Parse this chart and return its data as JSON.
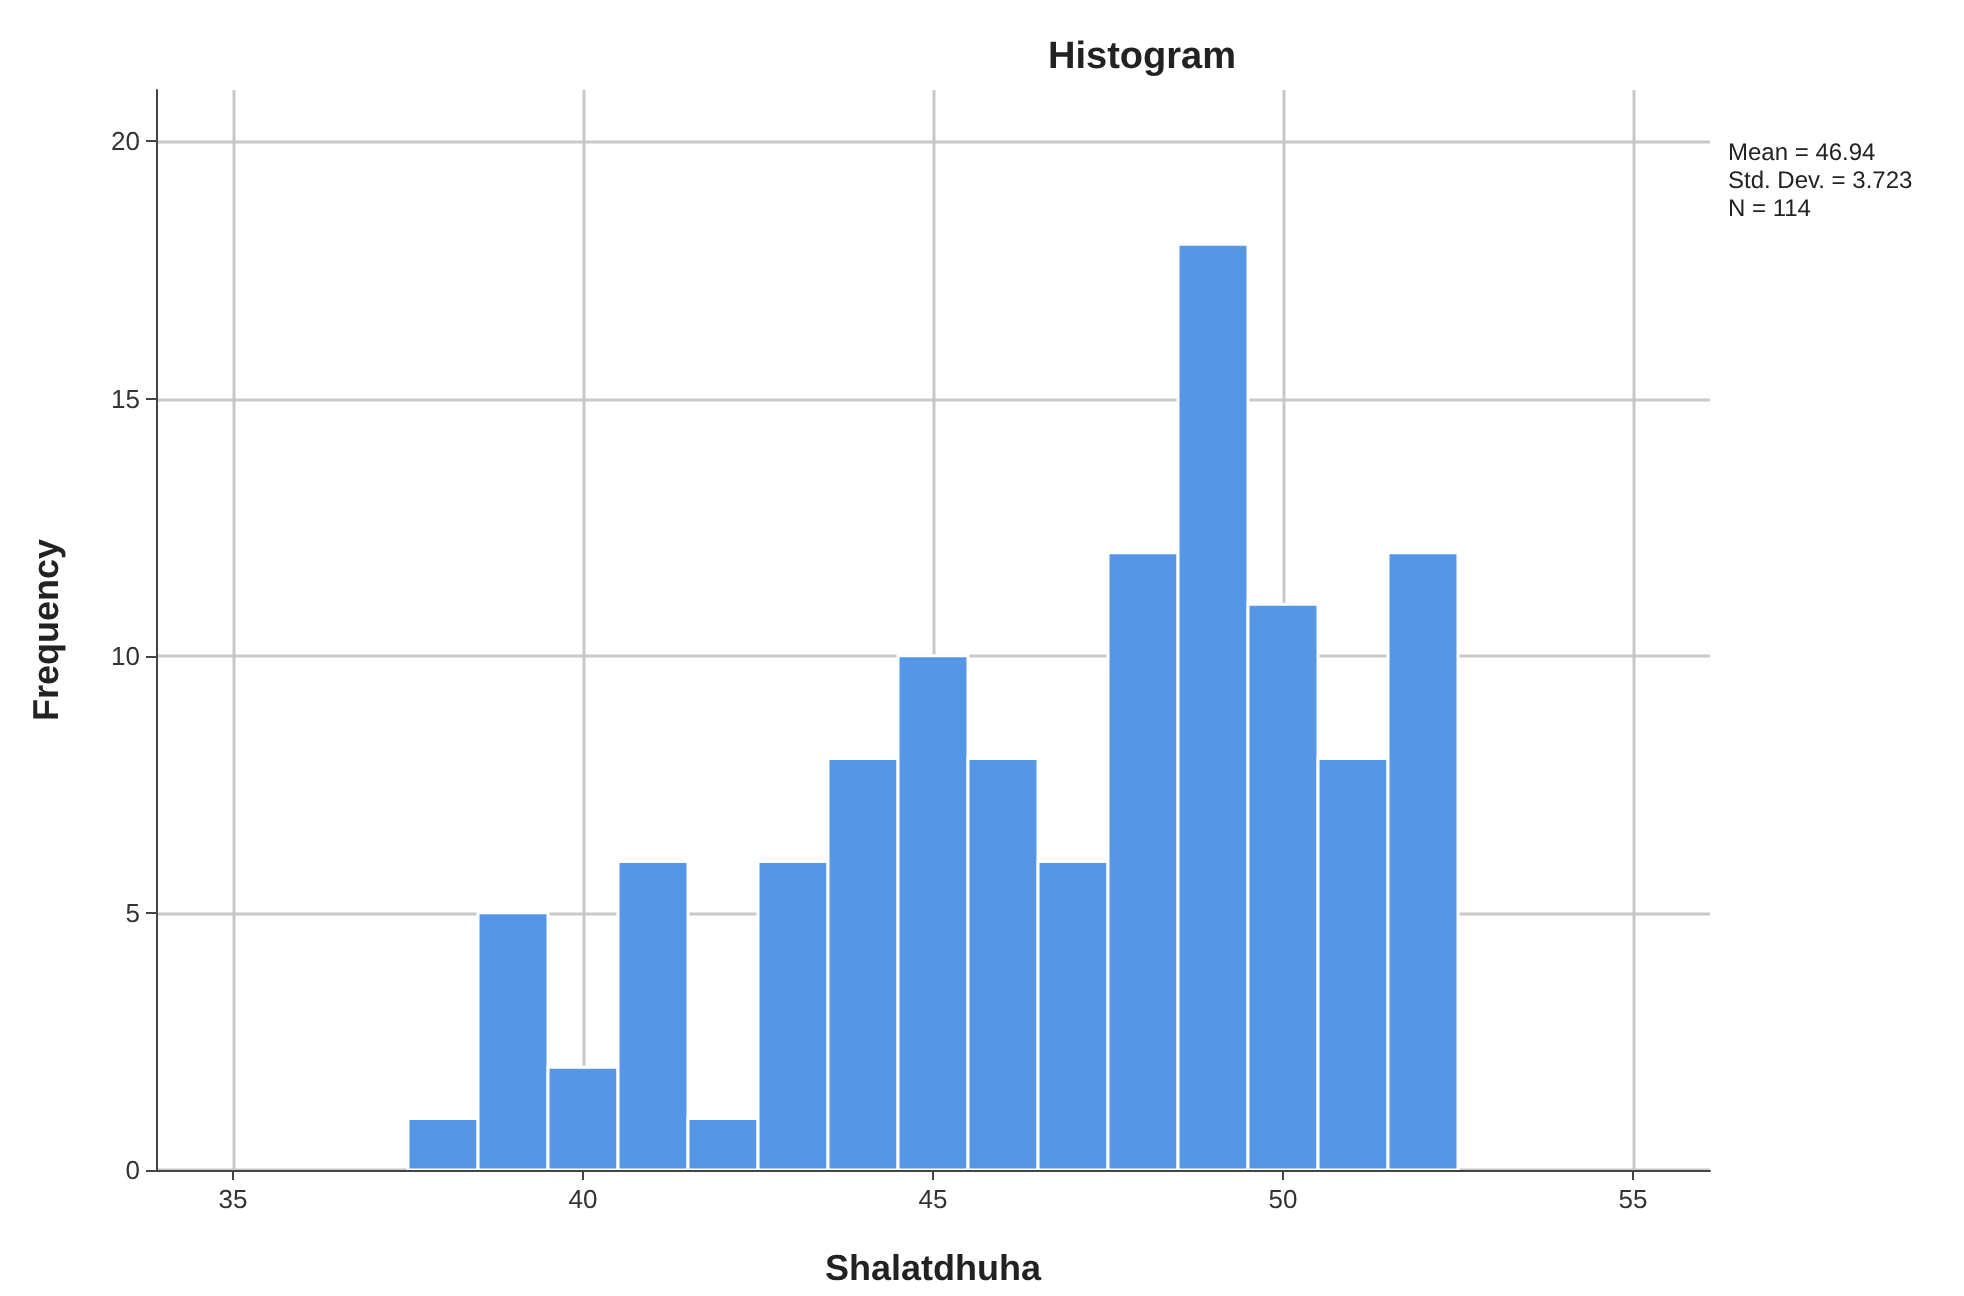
{
  "chart_data": {
    "type": "histogram",
    "title": "Histogram",
    "xlabel": "Shalatdhuha",
    "ylabel": "Frequency",
    "bins": [
      37.5,
      38.5,
      39.5,
      40.5,
      41.5,
      42.5,
      43.5,
      44.5,
      45.5,
      46.5,
      47.5,
      48.5,
      49.5,
      50.5,
      51.5,
      52.5
    ],
    "values": [
      1,
      5,
      2,
      6,
      1,
      6,
      8,
      10,
      8,
      6,
      12,
      18,
      11,
      8,
      12
    ],
    "color": "#5596e6",
    "xlim": [
      33.9,
      56.1
    ],
    "xticks": [
      35,
      40,
      45,
      50,
      55
    ],
    "ylim": [
      0,
      21
    ],
    "yticks": [
      0,
      5,
      10,
      15,
      20
    ],
    "grid": true,
    "annotations": [
      "Mean = 46.94",
      "Std. Dev. = 3.723",
      "N = 114"
    ]
  }
}
